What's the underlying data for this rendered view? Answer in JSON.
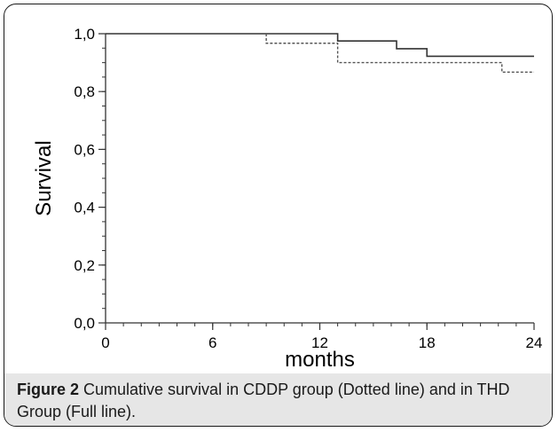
{
  "chart_data": {
    "type": "line",
    "title": "",
    "xlabel": "months",
    "ylabel": "Survival",
    "xlim": [
      0,
      24
    ],
    "ylim": [
      0.0,
      1.0
    ],
    "x_ticks": [
      0,
      6,
      12,
      18,
      24
    ],
    "x_tick_labels": [
      "0",
      "6",
      "12",
      "18",
      "24"
    ],
    "y_ticks": [
      0.0,
      0.2,
      0.4,
      0.6,
      0.8,
      1.0
    ],
    "y_tick_labels": [
      "0,0",
      "0,2",
      "0,4",
      "0,6",
      "0,8",
      "1,0"
    ],
    "x_minor_step": 1,
    "y_minor_step": 0.05,
    "grid": false,
    "series": [
      {
        "key": "thd",
        "style": "solid",
        "color": "#333333",
        "points": [
          [
            0,
            1.0
          ],
          [
            13,
            1.0
          ],
          [
            13,
            0.975
          ],
          [
            16.3,
            0.975
          ],
          [
            16.3,
            0.948
          ],
          [
            18,
            0.948
          ],
          [
            18,
            0.922
          ],
          [
            24,
            0.922
          ]
        ]
      },
      {
        "key": "cddp",
        "style": "dotted",
        "color": "#555555",
        "points": [
          [
            9,
            1.0
          ],
          [
            9,
            0.967
          ],
          [
            13,
            0.967
          ],
          [
            13,
            0.9
          ],
          [
            22.2,
            0.9
          ],
          [
            22.2,
            0.867
          ],
          [
            24,
            0.867
          ]
        ]
      }
    ]
  },
  "caption": {
    "label": "Figure 2",
    "text": " Cumulative survival in CDDP group (Dotted line) and in THD Group (Full line)."
  }
}
